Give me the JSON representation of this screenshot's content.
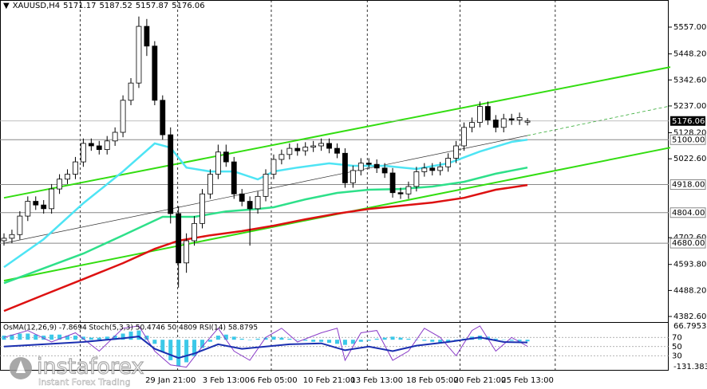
{
  "chart_data": {
    "type": "candlestick",
    "symbol": "XAUUSD,H4",
    "categories": [
      null,
      null,
      null,
      null,
      null,
      null,
      null,
      null,
      null,
      null,
      null,
      null,
      null,
      null,
      null,
      null,
      null,
      null,
      null,
      null,
      null,
      "29 Jan 21:00",
      null,
      null,
      null,
      null,
      null,
      null,
      "3 Feb 13:00",
      null,
      null,
      null,
      null,
      null,
      "6 Feb 05:00",
      null,
      null,
      null,
      null,
      null,
      null,
      "10 Feb 21:00",
      null,
      null,
      null,
      null,
      null,
      "13 Feb 13:00",
      null,
      null,
      null,
      null,
      null,
      null,
      "18 Feb 05:00",
      null,
      null,
      null,
      null,
      null,
      "20 Feb 21:00",
      null,
      null,
      null,
      null,
      null,
      "25 Feb 13:00"
    ],
    "open": [
      4690,
      4700,
      4715,
      4790,
      4850,
      4835,
      4820,
      4900,
      4940,
      4960,
      5010,
      5085,
      5075,
      5060,
      5095,
      5130,
      5260,
      5330,
      5560,
      5480,
      5260,
      5120,
      4800,
      4600,
      4690,
      4760,
      4880,
      4960,
      5050,
      5010,
      4880,
      4850,
      4820,
      4870,
      4960,
      5020,
      5040,
      5065,
      5055,
      5070,
      5075,
      5085,
      5065,
      5045,
      4925,
      4975,
      5005,
      5000,
      4985,
      4965,
      4885,
      4880,
      4910,
      4970,
      4985,
      4975,
      4990,
      5025,
      5075,
      5150,
      5170,
      5235,
      5180,
      5150,
      5185,
      5180,
      5171.17
    ],
    "high": [
      4720,
      4735,
      4810,
      4870,
      4870,
      4855,
      4920,
      4960,
      4980,
      5030,
      5105,
      5105,
      5095,
      5115,
      5150,
      5280,
      5350,
      5600,
      5590,
      5500,
      5280,
      5150,
      4830,
      4720,
      4790,
      4900,
      4980,
      5080,
      5080,
      5030,
      4900,
      4870,
      4890,
      4980,
      5040,
      5060,
      5085,
      5085,
      5090,
      5095,
      5105,
      5105,
      5085,
      5065,
      4995,
      5025,
      5025,
      5020,
      5005,
      4985,
      4905,
      4930,
      4990,
      5005,
      5005,
      5010,
      5045,
      5095,
      5170,
      5190,
      5255,
      5255,
      5200,
      5205,
      5205,
      5210,
      5187.52
    ],
    "low": [
      4670,
      4680,
      4695,
      4770,
      4815,
      4800,
      4800,
      4880,
      4920,
      4940,
      4990,
      5055,
      5040,
      5040,
      5075,
      5110,
      5240,
      5310,
      5440,
      5240,
      5100,
      4760,
      4500,
      4560,
      4670,
      4740,
      4860,
      4940,
      4990,
      4860,
      4830,
      4670,
      4800,
      4850,
      4940,
      5000,
      5020,
      5035,
      5035,
      5050,
      5055,
      5045,
      5025,
      4905,
      4905,
      4955,
      4980,
      4965,
      4945,
      4865,
      4860,
      4860,
      4890,
      4950,
      4955,
      4955,
      4970,
      5005,
      5055,
      5130,
      5150,
      5160,
      5130,
      5130,
      5160,
      5160,
      5157.87
    ],
    "close": [
      4700,
      4715,
      4790,
      4850,
      4835,
      4820,
      4900,
      4940,
      4960,
      5010,
      5085,
      5075,
      5060,
      5095,
      5130,
      5260,
      5330,
      5560,
      5480,
      5260,
      5120,
      4800,
      4600,
      4690,
      4760,
      4880,
      4960,
      5050,
      5010,
      4880,
      4850,
      4820,
      4870,
      4960,
      5020,
      5040,
      5065,
      5055,
      5070,
      5075,
      5085,
      5065,
      5045,
      4925,
      4975,
      5005,
      5000,
      4985,
      4965,
      4885,
      4880,
      4910,
      4970,
      4985,
      4975,
      4990,
      5025,
      5075,
      5150,
      5170,
      5235,
      5180,
      5150,
      5185,
      5180,
      5190,
      5176.06
    ],
    "up_color": "#ffffff",
    "down_color": "#000000",
    "ylim": [
      4360,
      5667
    ],
    "yticks": [
      {
        "value": 5557,
        "label": "5557.00"
      },
      {
        "value": 5448.2,
        "label": "5448.20"
      },
      {
        "value": 5342.6,
        "label": "5342.60"
      },
      {
        "value": 5237,
        "label": "5237.00"
      },
      {
        "value": 5128.2,
        "label": "5128.20"
      },
      {
        "value": 5022.6,
        "label": "5022.60"
      },
      {
        "value": 4702.6,
        "label": "4702.60"
      },
      {
        "value": 4593.8,
        "label": "4593.80"
      },
      {
        "value": 4488.2,
        "label": "4488.20"
      },
      {
        "value": 4382.6,
        "label": "4382.60"
      }
    ],
    "levels": [
      {
        "value": 5100,
        "label": "5100.00"
      },
      {
        "value": 4918,
        "label": "4918.00"
      },
      {
        "value": 4804,
        "label": "4804.00"
      },
      {
        "value": 4680,
        "label": "4680.00"
      }
    ],
    "xgrid": [
      9.6,
      21.9,
      33.7,
      45.8,
      57.5,
      69.5
    ],
    "overlays": [
      {
        "color": "#4ee4f4",
        "x": [
          0,
          5,
          10,
          15,
          19,
          21,
          23,
          26,
          29,
          32,
          34,
          37,
          41,
          44,
          48,
          52,
          56,
          60,
          64,
          66
        ],
        "values": [
          4583,
          4696,
          4842,
          4971,
          5085,
          5068,
          4987,
          4971,
          4971,
          4939,
          4971,
          4987,
          5004,
          4994,
          4994,
          4981,
          5004,
          5052,
          5091,
          5100
        ]
      },
      {
        "color": "#2ee08a",
        "x": [
          0,
          10,
          15,
          20,
          24,
          28,
          32,
          34,
          38,
          42,
          46,
          50,
          54,
          58,
          62,
          66
        ],
        "values": [
          4518,
          4638,
          4712,
          4787,
          4787,
          4809,
          4819,
          4826,
          4858,
          4884,
          4897,
          4900,
          4910,
          4929,
          4962,
          4987
        ]
      },
      {
        "color": "#dd1111",
        "x": [
          0,
          5,
          10,
          15,
          19,
          22,
          26,
          30,
          34,
          38,
          42,
          46,
          50,
          54,
          58,
          62,
          66
        ],
        "values": [
          4405,
          4470,
          4534,
          4599,
          4657,
          4690,
          4712,
          4729,
          4751,
          4777,
          4800,
          4819,
          4832,
          4845,
          4864,
          4897,
          4916
        ]
      }
    ],
    "trendlines": [
      {
        "color": "#33dd11",
        "x": [
          0,
          84
        ],
        "values": [
          4864,
          5395
        ]
      },
      {
        "color": "#33dd11",
        "x": [
          0,
          84
        ],
        "values": [
          4528,
          5068
        ]
      },
      {
        "color": "#333333",
        "x": [
          0,
          66
        ],
        "values": [
          4680,
          5117
        ]
      },
      {
        "color": "#33aa33",
        "x": [
          66,
          84
        ],
        "values": [
          5117,
          5237
        ],
        "dash": true
      }
    ]
  },
  "oscillator": {
    "title": "OsMA(12,26,9) -7.8694 Stoch(5,3,3) 50.4746 50.4809 RSI(14) 58.8795",
    "ylim": [
      0,
      100
    ],
    "yticks": [
      70,
      50,
      30
    ],
    "osma_lim": [
      -131.3834,
      66.7953
    ],
    "osma_ticks": [
      66.7953,
      -131.3834
    ],
    "osma_color": "#3cc8e8",
    "osma": [
      20,
      25,
      30,
      30,
      25,
      20,
      25,
      25,
      20,
      20,
      15,
      10,
      10,
      15,
      20,
      30,
      40,
      45,
      20,
      -20,
      -60,
      -100,
      -130,
      -110,
      -80,
      -40,
      -10,
      20,
      25,
      15,
      5,
      0,
      5,
      10,
      15,
      10,
      5,
      0,
      -5,
      -10,
      -10,
      -15,
      -20,
      -25,
      -20,
      -10,
      -5,
      5,
      10,
      15,
      10,
      5,
      0,
      -5,
      -10,
      -15,
      -10,
      -5,
      5,
      15,
      20,
      15,
      5,
      0,
      -5,
      -8,
      -7.8694
    ],
    "rsi": {
      "color": "#1a2fb0",
      "x": [
        0,
        5,
        10,
        15,
        17,
        19,
        22,
        24,
        27,
        30,
        33,
        36,
        40,
        43,
        46,
        49,
        52,
        56,
        60,
        63,
        66
      ],
      "values": [
        50,
        55,
        60,
        68,
        72,
        45,
        25,
        35,
        55,
        45,
        50,
        55,
        57,
        42,
        50,
        40,
        52,
        60,
        70,
        60,
        58.8795
      ]
    },
    "stoch": {
      "color": "#8a3cc8",
      "x": [
        0,
        3,
        6,
        9,
        12,
        15,
        17,
        19,
        21,
        23,
        25,
        27,
        29,
        31,
        33,
        35,
        37,
        40,
        42,
        43,
        45,
        47,
        49,
        51,
        53,
        55,
        57,
        59,
        60,
        62,
        64,
        66
      ],
      "values": [
        70,
        85,
        60,
        80,
        40,
        90,
        95,
        40,
        10,
        5,
        50,
        90,
        40,
        20,
        70,
        90,
        60,
        80,
        90,
        20,
        80,
        85,
        20,
        40,
        90,
        70,
        30,
        85,
        95,
        40,
        70,
        50.4746
      ]
    }
  },
  "watermark": {
    "brand": "instaforex",
    "tagline": "Instant Forex Trading"
  }
}
